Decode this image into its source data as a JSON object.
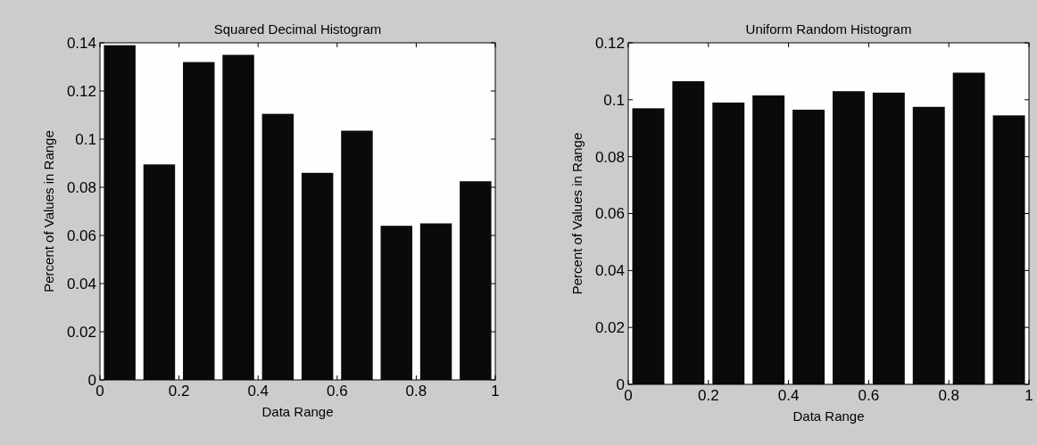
{
  "chart_data": [
    {
      "type": "bar",
      "title": "Squared Decimal Histogram",
      "xlabel": "Data Range",
      "ylabel": "Percent of Values in Range",
      "x": [
        0.05,
        0.15,
        0.25,
        0.35,
        0.45,
        0.55,
        0.65,
        0.75,
        0.85,
        0.95
      ],
      "values": [
        0.139,
        0.0895,
        0.132,
        0.135,
        0.1105,
        0.086,
        0.1035,
        0.064,
        0.065,
        0.0825
      ],
      "color": "#0a0a0a",
      "xlim": [
        0,
        1
      ],
      "xticks": [
        0,
        0.2,
        0.4,
        0.6,
        0.8,
        1
      ],
      "ylim": [
        0,
        0.14
      ],
      "yticks": [
        0,
        0.02,
        0.04,
        0.06,
        0.08,
        0.1,
        0.12,
        0.14
      ],
      "grid": false
    },
    {
      "type": "bar",
      "title": "Uniform Random Histogram",
      "xlabel": "Data Range",
      "ylabel": "Percent of Values in Range",
      "x": [
        0.05,
        0.15,
        0.25,
        0.35,
        0.45,
        0.55,
        0.65,
        0.75,
        0.85,
        0.95
      ],
      "values": [
        0.097,
        0.1065,
        0.099,
        0.1015,
        0.0965,
        0.103,
        0.1025,
        0.0975,
        0.1095,
        0.0945
      ],
      "color": "#0a0a0a",
      "xlim": [
        0,
        1
      ],
      "xticks": [
        0,
        0.2,
        0.4,
        0.6,
        0.8,
        1
      ],
      "ylim": [
        0,
        0.12
      ],
      "yticks": [
        0,
        0.02,
        0.04,
        0.06,
        0.08,
        0.1,
        0.12
      ],
      "grid": false
    }
  ]
}
